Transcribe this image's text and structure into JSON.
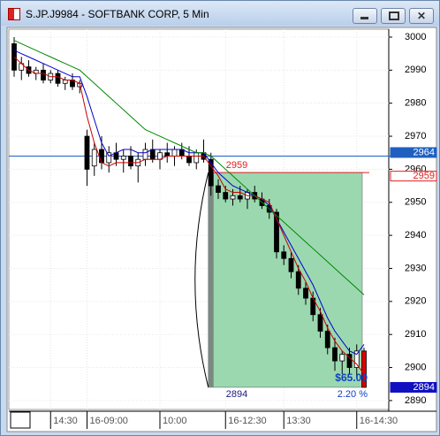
{
  "window": {
    "title": "S.JP.J9984 - SOFTBANK CORP, 5 Min"
  },
  "chart_data": {
    "type": "candlestick",
    "categories": [
      null,
      null,
      null,
      null,
      null,
      "14:30",
      null,
      null,
      null,
      null,
      "16-09:00",
      null,
      null,
      null,
      null,
      null,
      null,
      null,
      null,
      null,
      "10:00",
      null,
      null,
      null,
      null,
      null,
      null,
      null,
      null,
      "16-12:30",
      null,
      null,
      null,
      null,
      null,
      null,
      null,
      "13:30",
      null,
      null,
      null,
      null,
      null,
      null,
      null,
      null,
      null,
      "16-14:30",
      null
    ],
    "open": [
      2998,
      2990,
      2991,
      2989,
      2990,
      2987,
      2989,
      2986,
      2987,
      2985,
      2970,
      2961,
      2966,
      2962,
      2965,
      2963,
      2964,
      2961,
      2963,
      2966,
      2963,
      2965,
      2964,
      2966,
      2964,
      2962,
      2965,
      2963,
      2955,
      2953,
      2951,
      2952,
      2951,
      2953,
      2951,
      2949,
      2947,
      2935,
      2933,
      2929,
      2924,
      2921,
      2916,
      2911,
      2906,
      2902,
      2904,
      2900,
      2905
    ],
    "high": [
      3000,
      2994,
      2993,
      2991,
      2992,
      2990,
      2990,
      2988,
      2989,
      2987,
      2972,
      2968,
      2970,
      2967,
      2968,
      2966,
      2967,
      2965,
      2968,
      2969,
      2966,
      2968,
      2967,
      2968,
      2967,
      2966,
      2969,
      2965,
      2957,
      2955,
      2954,
      2955,
      2954,
      2955,
      2953,
      2951,
      2948,
      2937,
      2935,
      2931,
      2926,
      2923,
      2918,
      2913,
      2909,
      2905,
      2906,
      2907,
      2906
    ],
    "low": [
      2988,
      2987,
      2988,
      2987,
      2986,
      2986,
      2985,
      2984,
      2984,
      2983,
      2955,
      2958,
      2960,
      2959,
      2961,
      2959,
      2960,
      2956,
      2961,
      2962,
      2960,
      2962,
      2961,
      2963,
      2961,
      2960,
      2962,
      2952,
      2951,
      2950,
      2949,
      2950,
      2948,
      2950,
      2948,
      2945,
      2933,
      2931,
      2927,
      2922,
      2919,
      2914,
      2909,
      2904,
      2899,
      2898,
      2898,
      2897,
      2894
    ],
    "close": [
      2990,
      2992,
      2989,
      2990,
      2987,
      2989,
      2986,
      2987,
      2985,
      2986,
      2960,
      2966,
      2962,
      2965,
      2963,
      2964,
      2961,
      2963,
      2966,
      2963,
      2965,
      2964,
      2966,
      2964,
      2962,
      2965,
      2963,
      2955,
      2953,
      2951,
      2952,
      2951,
      2953,
      2951,
      2949,
      2947,
      2935,
      2933,
      2929,
      2924,
      2921,
      2916,
      2911,
      2906,
      2902,
      2904,
      2900,
      2905,
      2894
    ],
    "series": [
      {
        "color": "#0000cc",
        "values": [
          2996,
          2995,
          2994,
          2993,
          2992,
          2991,
          2990,
          2989,
          2988,
          2988,
          2982,
          2975,
          2968,
          2964,
          2965,
          2966,
          2966,
          2965,
          2965,
          2966,
          2966,
          2966,
          2966,
          2966,
          2965,
          2965,
          2965,
          2962,
          2959,
          2957,
          2955,
          2954,
          2953,
          2952,
          2951,
          2949,
          2945,
          2941,
          2937,
          2933,
          2929,
          2925,
          2920,
          2915,
          2911,
          2908,
          2905,
          2904,
          2907
        ]
      },
      {
        "color": "#cc0000",
        "values": [
          2994,
          2992,
          2990,
          2989,
          2989,
          2988,
          2988,
          2987,
          2987,
          2986,
          2976,
          2968,
          2962,
          2961,
          2962,
          2962,
          2962,
          2962,
          2963,
          2963,
          2963,
          2964,
          2964,
          2964,
          2964,
          2964,
          2964,
          2961,
          2958,
          2954,
          2953,
          2953,
          2952,
          2952,
          2951,
          2950,
          2945,
          2940,
          2935,
          2930,
          2926,
          2921,
          2917,
          2912,
          2908,
          2905,
          2903,
          2901,
          2898
        ]
      },
      {
        "color": "#008800",
        "values": [
          2999,
          2998,
          2997,
          2996,
          2995,
          2994,
          2993,
          2992,
          2991,
          2990,
          2988,
          2986,
          2984,
          2982,
          2980,
          2978,
          2976,
          2974,
          2972,
          2971,
          2970,
          2969,
          2968,
          2967,
          2966,
          2965,
          2965,
          2964,
          2962,
          2960,
          2958,
          2956,
          2954,
          2952,
          2950,
          2948,
          2946,
          2944,
          2942,
          2940,
          2938,
          2936,
          2934,
          2932,
          2930,
          2928,
          2926,
          2924,
          2922
        ]
      }
    ],
    "ylim": [
      2887.3,
      3002.4
    ],
    "yticks": [
      2890,
      2900,
      2910,
      2920,
      2930,
      2940,
      2950,
      2960,
      2970,
      2980,
      2990,
      3000
    ],
    "grid": true,
    "price_markers": [
      {
        "value": 2964,
        "color": "#1f5fc0"
      },
      {
        "value": 2959,
        "color": "#e02020"
      },
      {
        "value": 2894,
        "color": "#1010c0"
      }
    ],
    "trade": {
      "entry": 2959,
      "exit": 2894,
      "profit": "$65.00",
      "percent": "2.20 %",
      "fill": "#9bd8b0"
    }
  }
}
